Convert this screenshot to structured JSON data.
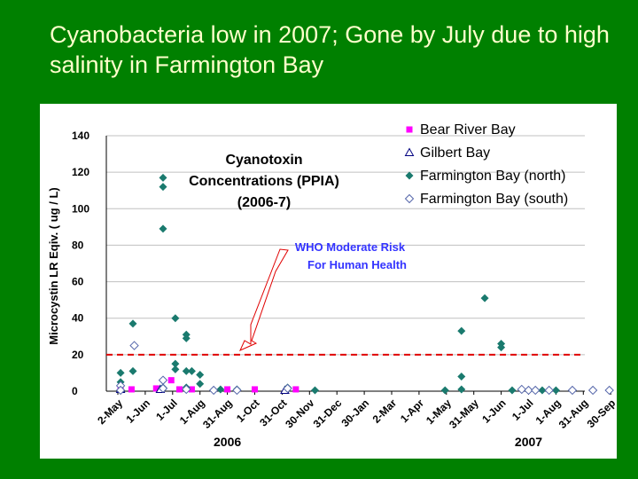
{
  "title": "Cyanobacteria low in 2007; Gone by July due to high salinity in Farmington Bay",
  "chart_data": {
    "type": "scatter",
    "ylabel": "Microcystin LR Eqiv.  ( ug / L)",
    "ylim": [
      0,
      140
    ],
    "yticks": [
      0,
      20,
      40,
      60,
      80,
      100,
      120,
      140
    ],
    "xticks": [
      "2-May",
      "1-Jun",
      "1-Jul",
      "1-Aug",
      "31-Aug",
      "1-Oct",
      "31-Oct",
      "30-Nov",
      "31-Dec",
      "30-Jan",
      "2-Mar",
      "1-Apr",
      "1-May",
      "31-May",
      "1-Jun",
      "1-Jul",
      "1-Aug",
      "31-Aug",
      "30-Sep"
    ],
    "years": [
      {
        "label": "2006",
        "tick_index": 4
      },
      {
        "label": "2007",
        "tick_index": 15
      }
    ],
    "annotation": [
      "Cyanotoxin",
      "Concentrations (PPIA)",
      "(2006-7)"
    ],
    "reference_line": {
      "y": 20,
      "color": "#e00000",
      "label": [
        "WHO Moderate Risk",
        "For Human Health"
      ]
    },
    "legend_position": "top-right",
    "colors": {
      "bear_river": "#ff00ff",
      "gilbert": "#000080",
      "farmington_north": "#1a7a6e",
      "farmington_south": "#5566aa"
    },
    "series": [
      {
        "name": "Bear River Bay",
        "marker": "square-filled",
        "color": "#ff00ff",
        "points": [
          [
            0.1,
            1
          ],
          [
            0.5,
            1
          ],
          [
            1.4,
            1.5
          ],
          [
            1.95,
            6
          ],
          [
            2.25,
            1
          ],
          [
            2.7,
            1
          ],
          [
            4,
            1
          ],
          [
            5,
            1
          ],
          [
            6.5,
            1
          ]
        ]
      },
      {
        "name": "Gilbert Bay",
        "marker": "triangle-open",
        "color": "#000080",
        "points": [
          [
            0.1,
            1
          ],
          [
            1.55,
            1
          ],
          [
            6.1,
            0.5
          ]
        ]
      },
      {
        "name": "Farmington Bay (north)",
        "marker": "diamond-filled",
        "color": "#1a7a6e",
        "points": [
          [
            0.1,
            10
          ],
          [
            0.1,
            5
          ],
          [
            0.55,
            11
          ],
          [
            0.55,
            37
          ],
          [
            1.65,
            117
          ],
          [
            1.65,
            112
          ],
          [
            1.65,
            89
          ],
          [
            1.65,
            2
          ],
          [
            2.1,
            40
          ],
          [
            2.1,
            15
          ],
          [
            2.1,
            12
          ],
          [
            2.5,
            31
          ],
          [
            2.5,
            29
          ],
          [
            2.5,
            11
          ],
          [
            2.5,
            2
          ],
          [
            2.7,
            11
          ],
          [
            3,
            9
          ],
          [
            3,
            4
          ],
          [
            3.5,
            0.5
          ],
          [
            3.75,
            1
          ],
          [
            4.35,
            1
          ],
          [
            6.2,
            2
          ],
          [
            7.2,
            0.5
          ],
          [
            11.95,
            0.5
          ],
          [
            12.55,
            33
          ],
          [
            12.55,
            8
          ],
          [
            12.55,
            1
          ],
          [
            13.4,
            51
          ],
          [
            14,
            26
          ],
          [
            14,
            24
          ],
          [
            14.4,
            0.5
          ],
          [
            15.5,
            0.5
          ],
          [
            16,
            0.5
          ],
          [
            16.6,
            0.5
          ]
        ]
      },
      {
        "name": "Farmington Bay (south)",
        "marker": "diamond-open",
        "color": "#5566aa",
        "points": [
          [
            0.1,
            3
          ],
          [
            0.1,
            0.5
          ],
          [
            0.6,
            25
          ],
          [
            1.65,
            6
          ],
          [
            1.65,
            1.5
          ],
          [
            2.5,
            1
          ],
          [
            3.5,
            0.5
          ],
          [
            4.35,
            0.5
          ],
          [
            6.2,
            1.5
          ],
          [
            14.75,
            1
          ],
          [
            15,
            0.5
          ],
          [
            15.25,
            0.5
          ],
          [
            15.75,
            0.5
          ],
          [
            16.6,
            0.5
          ],
          [
            17.35,
            0.5
          ],
          [
            17.95,
            0.5
          ]
        ]
      }
    ]
  }
}
